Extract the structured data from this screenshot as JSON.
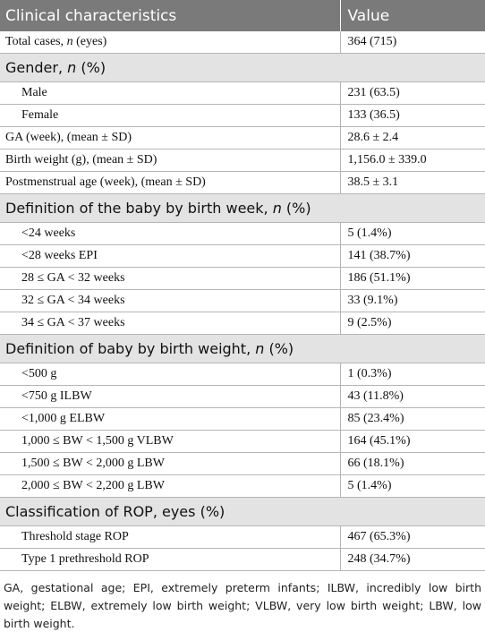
{
  "table": {
    "header": [
      "Clinical characteristics",
      "Value"
    ],
    "rows": [
      {
        "kind": "item",
        "label": [
          "Total cases, ",
          "n",
          " (eyes)"
        ],
        "value": "364 (715)"
      },
      {
        "kind": "section",
        "label": [
          "Gender, ",
          "n",
          " (%)"
        ]
      },
      {
        "kind": "subitem",
        "label": [
          "Male"
        ],
        "value": "231 (63.5)"
      },
      {
        "kind": "subitem",
        "label": [
          "Female"
        ],
        "value": "133 (36.5)"
      },
      {
        "kind": "item",
        "label": [
          "GA (week), (mean ± SD)"
        ],
        "value": "28.6 ± 2.4"
      },
      {
        "kind": "item",
        "label": [
          "Birth weight (g), (mean ± SD)"
        ],
        "value": "1,156.0 ± 339.0"
      },
      {
        "kind": "item",
        "label": [
          "Postmenstrual age (week), (mean ± SD)"
        ],
        "value": "38.5 ± 3.1"
      },
      {
        "kind": "section",
        "label": [
          "Definition of the baby by birth week, ",
          "n",
          " (%)"
        ]
      },
      {
        "kind": "subitem",
        "label": [
          "<24 weeks"
        ],
        "value": "5 (1.4%)"
      },
      {
        "kind": "subitem",
        "label": [
          "<28 weeks EPI"
        ],
        "value": "141 (38.7%)"
      },
      {
        "kind": "subitem",
        "label": [
          "28 ≤ GA < 32 weeks"
        ],
        "value": "186 (51.1%)"
      },
      {
        "kind": "subitem",
        "label": [
          "32 ≤ GA < 34 weeks"
        ],
        "value": "33 (9.1%)"
      },
      {
        "kind": "subitem",
        "label": [
          "34 ≤ GA < 37 weeks"
        ],
        "value": "9 (2.5%)"
      },
      {
        "kind": "section",
        "label": [
          "Definition of baby by birth weight, ",
          "n",
          " (%)"
        ]
      },
      {
        "kind": "subitem",
        "label": [
          "<500 g"
        ],
        "value": "1 (0.3%)"
      },
      {
        "kind": "subitem",
        "label": [
          "<750 g ILBW"
        ],
        "value": "43 (11.8%)"
      },
      {
        "kind": "subitem",
        "label": [
          "<1,000 g ELBW"
        ],
        "value": "85 (23.4%)"
      },
      {
        "kind": "subitem",
        "label": [
          "1,000 ≤ BW < 1,500 g VLBW"
        ],
        "value": "164 (45.1%)"
      },
      {
        "kind": "subitem",
        "label": [
          "1,500 ≤ BW < 2,000 g LBW"
        ],
        "value": "66 (18.1%)"
      },
      {
        "kind": "subitem",
        "label": [
          "2,000 ≤ BW < 2,200 g LBW"
        ],
        "value": "5 (1.4%)"
      },
      {
        "kind": "section",
        "label": [
          "Classification of ROP, eyes (%)"
        ]
      },
      {
        "kind": "subitem",
        "label": [
          "Threshold stage ROP"
        ],
        "value": "467 (65.3%)"
      },
      {
        "kind": "subitem",
        "label": [
          "Type 1 prethreshold ROP"
        ],
        "value": "248 (34.7%)"
      }
    ]
  },
  "footnote": "GA, gestational age; EPI, extremely preterm infants; ILBW, incredibly low birth weight; ELBW, extremely low birth weight; VLBW, very low birth weight; LBW, low birth weight."
}
